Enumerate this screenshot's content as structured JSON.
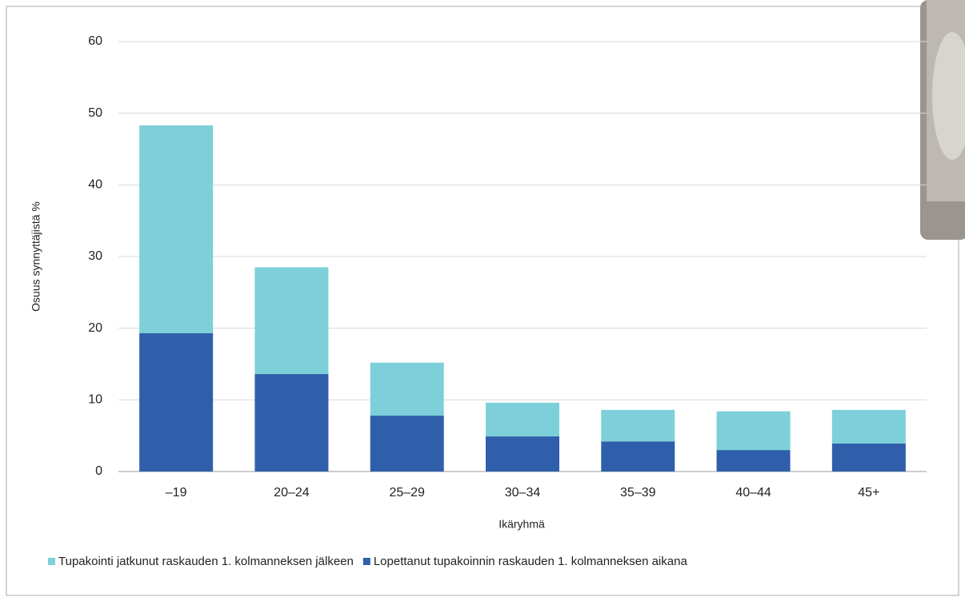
{
  "chart_data": {
    "type": "stacked_bar",
    "y_label": "Osuus synnyttäjistä %",
    "x_label": "Ikäryhmä",
    "categories": [
      "–19",
      "20–24",
      "25–29",
      "30–34",
      "35–39",
      "40–44",
      "45+"
    ],
    "series": [
      {
        "name": "Tupakointi jatkunut raskauden 1. kolmanneksen jälkeen",
        "color": "#7dd0d9",
        "values": [
          29.0,
          14.9,
          7.4,
          4.7,
          4.4,
          5.4,
          4.7
        ]
      },
      {
        "name": "Lopettanut tupakoinnin raskauden 1. kolmanneksen aikana",
        "color": "#2f5faa",
        "values": [
          19.3,
          13.6,
          7.8,
          4.9,
          4.2,
          3.0,
          3.9
        ]
      }
    ],
    "ylim": [
      0,
      60
    ],
    "yticks": [
      0,
      10,
      20,
      30,
      40,
      50,
      60
    ],
    "grid": true
  }
}
